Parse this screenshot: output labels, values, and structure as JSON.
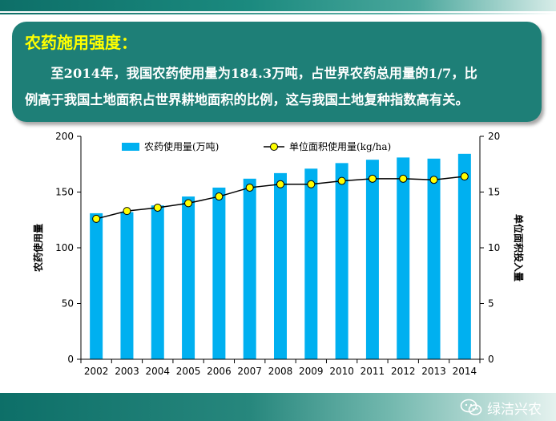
{
  "slide": {
    "title": "农药施用强度：",
    "line1": "至2014年，我国农药使用量为184.3万吨，占世界农药总用量的1/7，比",
    "line2": "例高于我国土地面积占世界耕地面积的比例，这与我国土地复种指数高有关。"
  },
  "watermark": {
    "text": "绿洁兴农",
    "icon": "wechat-icon"
  },
  "colors": {
    "bar": "#00b0f0",
    "line": "#000000",
    "marker": "#ffff00",
    "accent": "#1e7f77"
  },
  "chart_data": {
    "type": "bar",
    "categories": [
      "2002",
      "2003",
      "2004",
      "2005",
      "2006",
      "2007",
      "2008",
      "2009",
      "2010",
      "2011",
      "2012",
      "2013",
      "2014"
    ],
    "series": [
      {
        "name": "农药使用量(万吨)",
        "type": "bar",
        "axis": "left",
        "values": [
          131,
          132,
          138,
          146,
          154,
          162,
          167,
          171,
          176,
          179,
          181,
          180,
          184.3
        ]
      },
      {
        "name": "单位面积使用量(kg/ha)",
        "type": "line",
        "axis": "right",
        "values": [
          12.6,
          13.3,
          13.6,
          14.0,
          14.6,
          15.4,
          15.7,
          15.7,
          16.0,
          16.2,
          16.2,
          16.1,
          16.4
        ]
      }
    ],
    "ylabel": "农药使用量",
    "y2label": "单位面积投入量",
    "ylim": [
      0,
      200
    ],
    "y2lim": [
      0,
      20
    ],
    "yticks": [
      0,
      50,
      100,
      150,
      200
    ],
    "y2ticks": [
      0,
      5,
      10,
      15,
      20
    ],
    "grid": false,
    "legend_position": "top"
  }
}
